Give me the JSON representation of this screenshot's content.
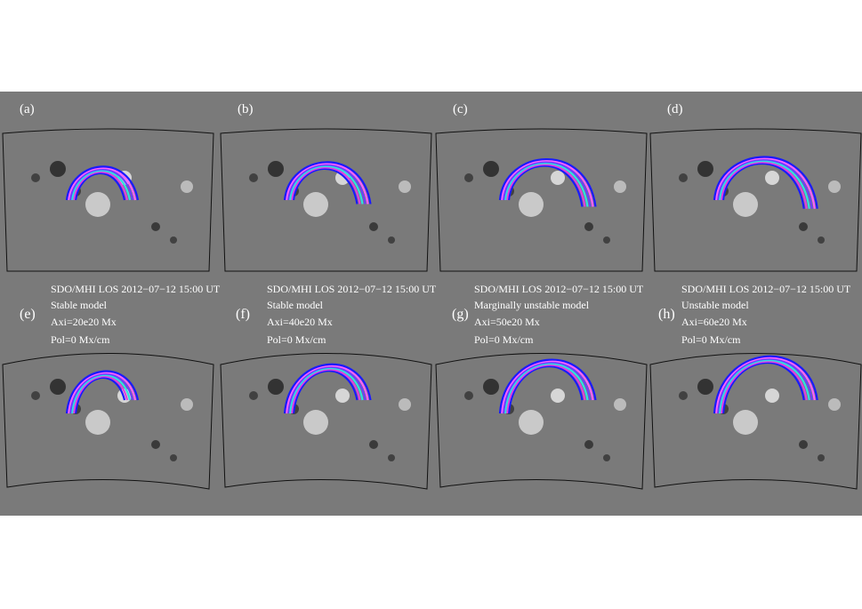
{
  "panels_top": [
    {
      "label": "(a)"
    },
    {
      "label": "(b)"
    },
    {
      "label": "(c)"
    },
    {
      "label": "(d)"
    }
  ],
  "panels_bottom": [
    {
      "label": "(e)",
      "title": "SDO/MHI LOS 2012−07−12 15:00 UT",
      "model": "Stable model",
      "axi": "Axi=20e20 Mx",
      "pol": "Pol=0 Mx/cm"
    },
    {
      "label": "(f)",
      "title": "SDO/MHI LOS 2012−07−12 15:00 UT",
      "model": "Stable model",
      "axi": "Axi=40e20 Mx",
      "pol": "Pol=0 Mx/cm"
    },
    {
      "label": "(g)",
      "title": "SDO/MHI LOS 2012−07−12 15:00 UT",
      "model": "Marginally unstable model",
      "axi": "Axi=50e20 Mx",
      "pol": "Pol=0 Mx/cm"
    },
    {
      "label": "(h)",
      "title": "SDO/MHI LOS 2012−07−12 15:00 UT",
      "model": "Unstable model",
      "axi": "Axi=60e20 Mx",
      "pol": "Pol=0 Mx/cm"
    }
  ]
}
